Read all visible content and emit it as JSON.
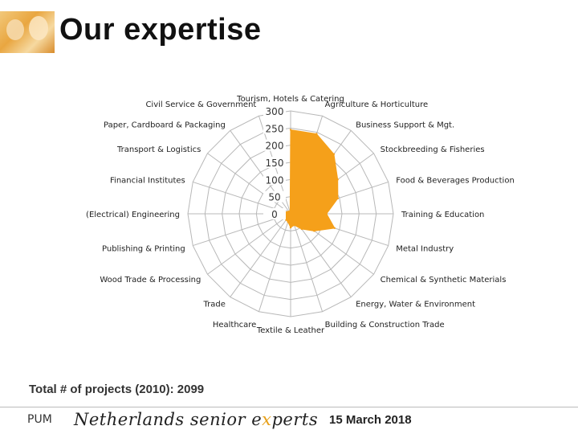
{
  "page": {
    "title": "Our expertise",
    "total_text": "Total # of projects (2010): 2099",
    "footer_pum": "PUM",
    "footer_brand_pre": "Netherlands senior e",
    "footer_brand_x": "x",
    "footer_brand_post": "perts",
    "footer_date": "15 March 2018"
  },
  "colors": {
    "fill": "#f5a01a",
    "grid": "#b8b8b8",
    "brand_accent": "#e7a11c"
  },
  "chart_data": {
    "type": "radar",
    "title": "",
    "categories": [
      "Tourism, Hotels & Catering",
      "Agriculture & Horticulture",
      "Business Support & Mgt.",
      "Stockbreeding & Fisheries",
      "Food & Beverages Production",
      "Training & Education",
      "Metal Industry",
      "Chemical & Synthetic Materials",
      "Energy, Water & Environment",
      "Building & Construction Trade",
      "Textile & Leather",
      "Healthcare",
      "Trade",
      "Wood Trade & Processing",
      "Publishing & Printing",
      "(Electrical) Engineering",
      "Financial Institutes",
      "Transport & Logistics",
      "Paper, Cardboard & Packaging",
      "Civil Service & Government"
    ],
    "values": [
      245,
      245,
      215,
      170,
      145,
      105,
      135,
      85,
      55,
      35,
      40,
      25,
      22,
      20,
      20,
      30,
      15,
      10,
      8,
      5
    ],
    "ticks": [
      "0",
      "50",
      "100",
      "150",
      "200",
      "250",
      "300"
    ],
    "range": [
      0,
      300
    ],
    "grid": true,
    "legend": "none"
  }
}
